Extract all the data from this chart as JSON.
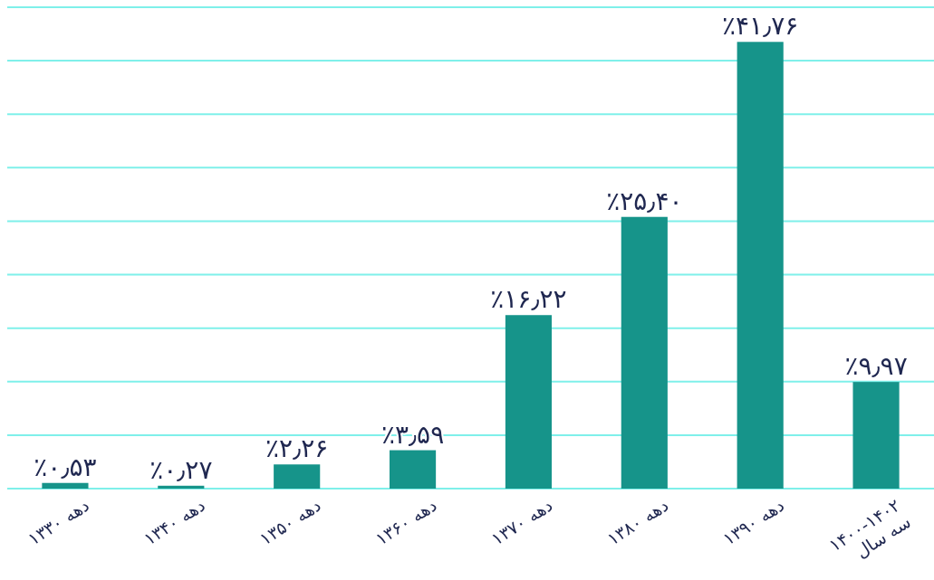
{
  "chart_data": {
    "type": "bar",
    "categories": [
      "دهه ۱۳۳۰",
      "دهه ۱۳۴۰",
      "دهه ۱۳۵۰",
      "دهه ۱۳۶۰",
      "دهه ۱۳۷۰",
      "دهه ۱۳۸۰",
      "دهه ۱۳۹۰",
      "۱۴۰۰-۱۴۰۲\nسه سال"
    ],
    "values": [
      0.53,
      0.27,
      2.26,
      3.59,
      16.22,
      25.4,
      41.76,
      9.97
    ],
    "value_labels": [
      "٪۰٫۵۳",
      "٪۰٫۲۷",
      "٪۲٫۲۶",
      "٪۳٫۵۹",
      "٪۱۶٫۲۲",
      "٪۲۵٫۴۰",
      "٪۴۱٫۷۶",
      "٪۹٫۹۷"
    ],
    "color": "#16948a",
    "yticks": [
      {
        "value": 0,
        "label": null
      },
      {
        "value": 5,
        "label": null
      },
      {
        "value": 10,
        "label": null
      },
      {
        "value": 15,
        "label": null
      },
      {
        "value": 20,
        "label": null
      },
      {
        "value": 25,
        "label": null
      },
      {
        "value": 30,
        "label": null
      },
      {
        "value": 35,
        "label": null
      },
      {
        "value": 40,
        "label": null
      },
      {
        "value": 45,
        "label": null
      }
    ],
    "ylim": [
      0,
      45
    ],
    "grid": "y",
    "tick_labels": "x"
  }
}
